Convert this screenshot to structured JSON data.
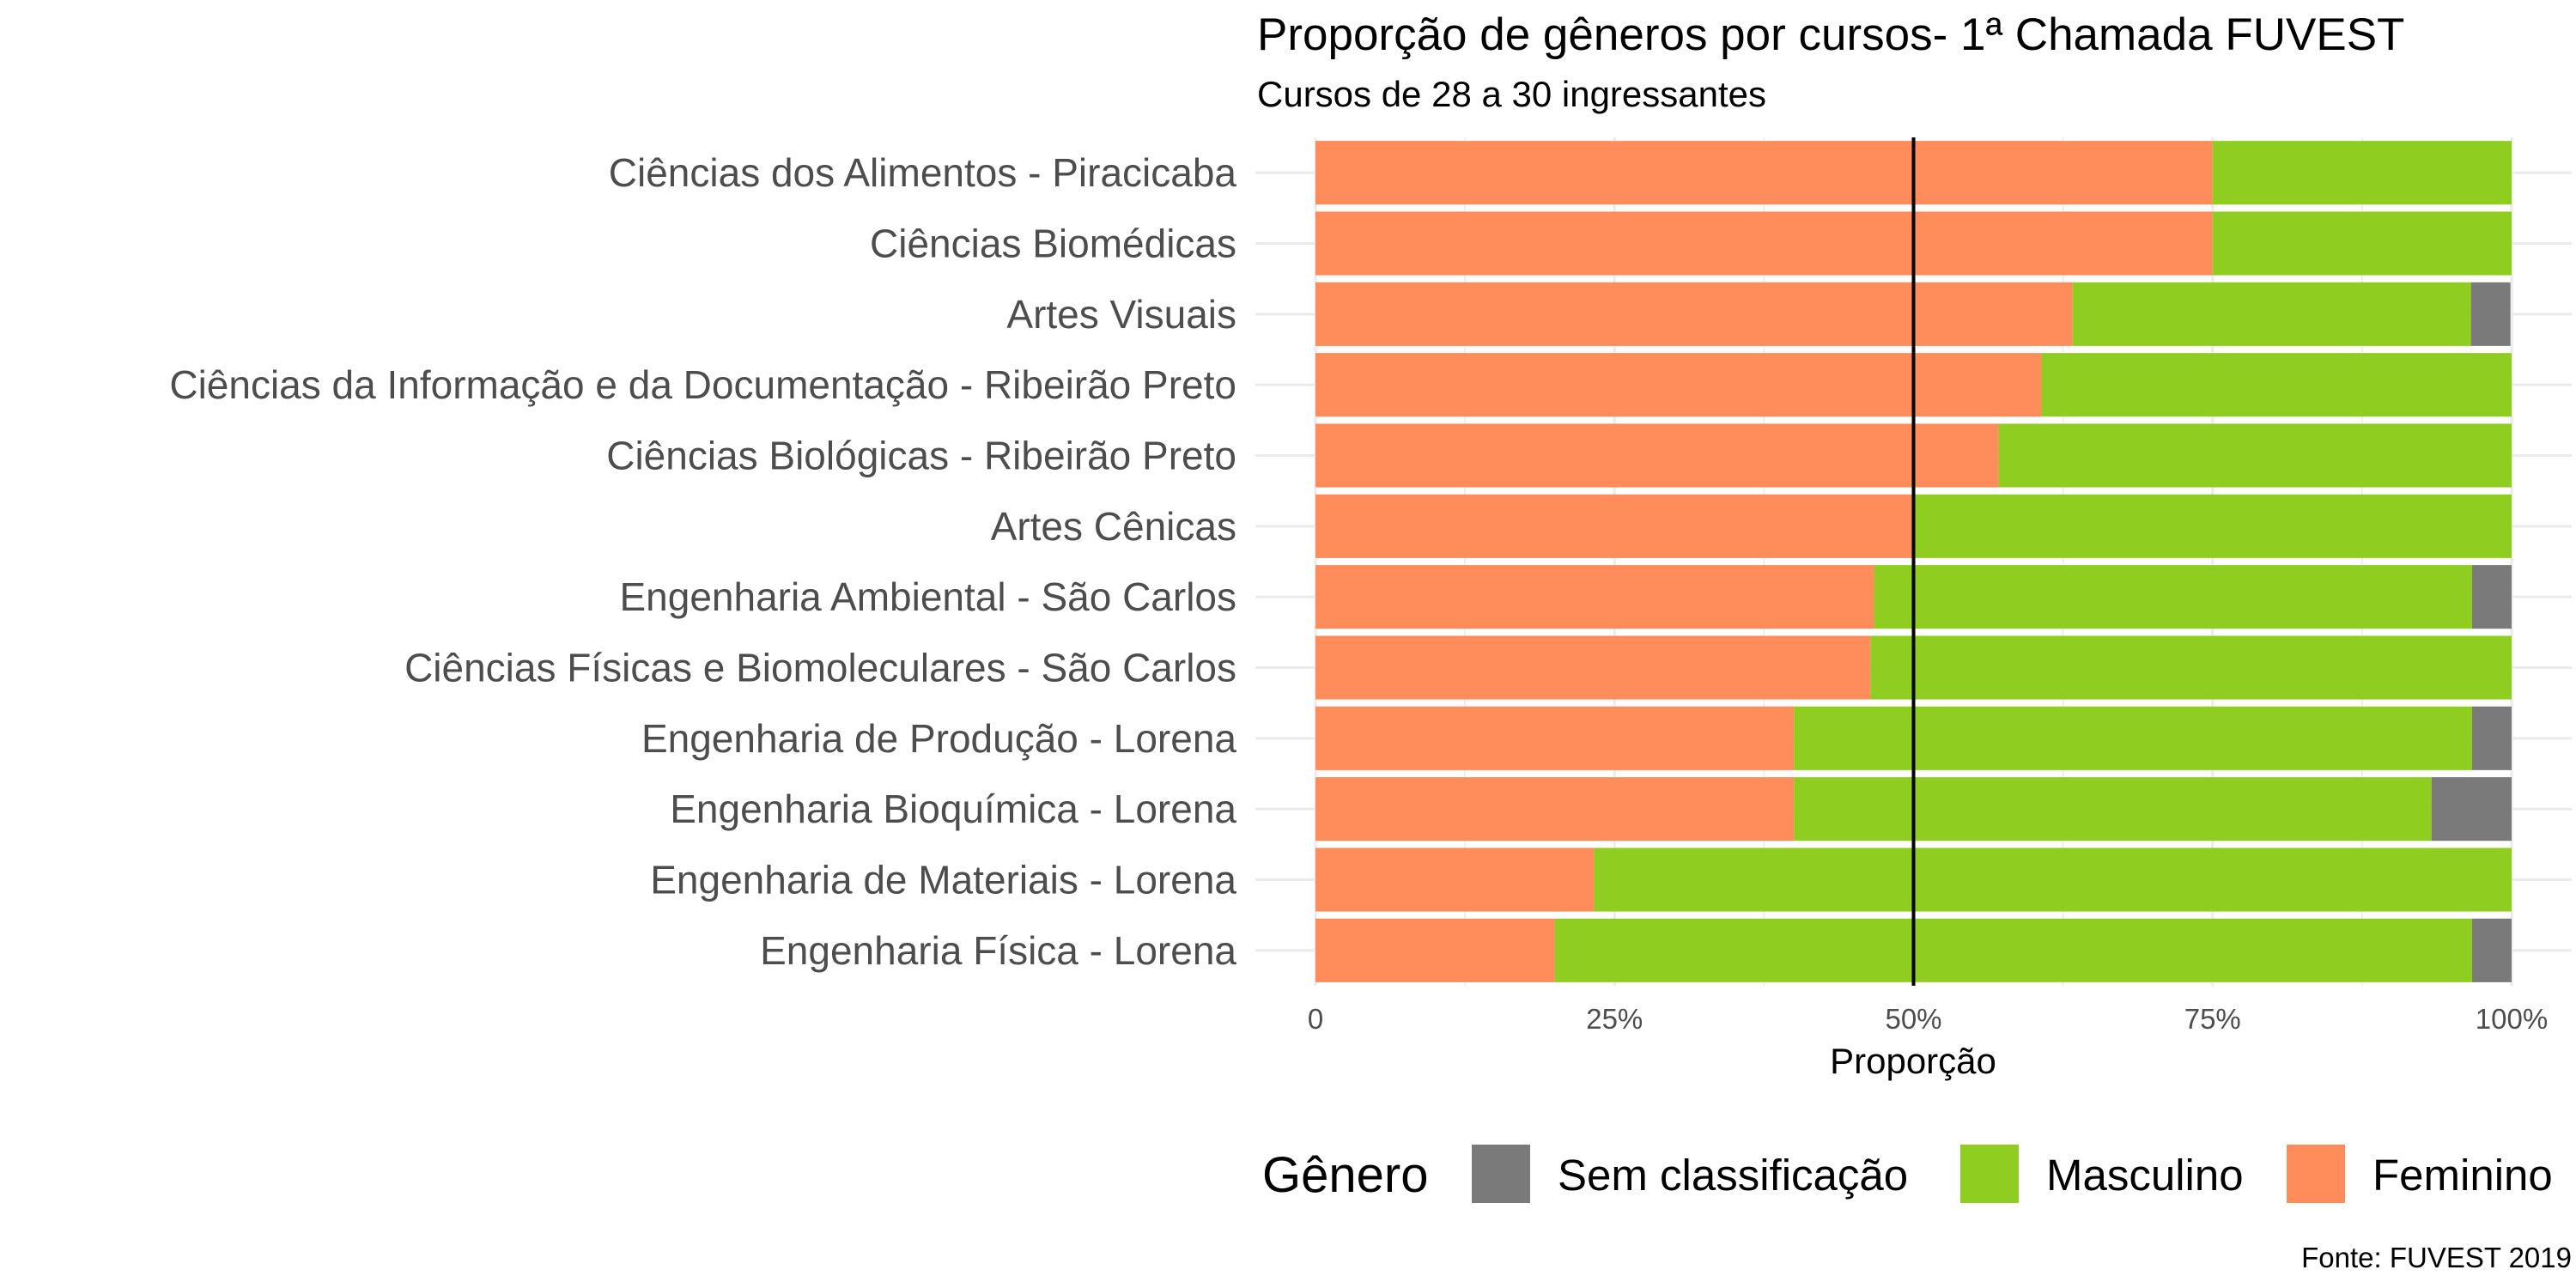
{
  "chart_data": {
    "type": "bar",
    "orientation": "horizontal",
    "stacked": true,
    "title": "Proporção de gêneros por cursos- 1ª Chamada FUVEST",
    "subtitle": "Cursos de 28 a 30 ingressantes",
    "xlabel": "Proporção",
    "ylabel": "",
    "xlim": [
      0,
      1
    ],
    "x_ticks": [
      {
        "value": 0,
        "label": "0"
      },
      {
        "value": 0.25,
        "label": "25%"
      },
      {
        "value": 0.5,
        "label": "50%"
      },
      {
        "value": 0.75,
        "label": "75%"
      },
      {
        "value": 1,
        "label": "100%"
      }
    ],
    "reference_line": 0.5,
    "grid": true,
    "categories": [
      "Ciências dos Alimentos - Piracicaba",
      "Ciências Biomédicas",
      "Artes Visuais",
      "Ciências da Informação e da Documentação - Ribeirão Preto",
      "Ciências Biológicas - Ribeirão Preto",
      "Artes Cênicas",
      "Engenharia Ambiental - São Carlos",
      "Ciências Físicas e Biomoleculares - São Carlos",
      "Engenharia de Produção - Lorena",
      "Engenharia Bioquímica - Lorena",
      "Engenharia de Materiais - Lorena",
      "Engenharia Física - Lorena"
    ],
    "series": [
      {
        "name": "Feminino",
        "color": "#ff8c5a",
        "values": [
          0.75,
          0.75,
          0.633,
          0.607,
          0.571,
          0.5,
          0.467,
          0.464,
          0.4,
          0.4,
          0.233,
          0.2
        ]
      },
      {
        "name": "Masculino",
        "color": "#8fce20",
        "values": [
          0.25,
          0.25,
          0.333,
          0.393,
          0.429,
          0.5,
          0.5,
          0.536,
          0.567,
          0.533,
          0.767,
          0.767
        ]
      },
      {
        "name": "Sem classificação",
        "color": "#7a7a7a",
        "values": [
          0,
          0,
          0.033,
          0,
          0,
          0,
          0.033,
          0,
          0.033,
          0.067,
          0,
          0.033
        ]
      }
    ],
    "legend": {
      "title": "Gênero",
      "position": "bottom",
      "order": [
        "Sem classificação",
        "Masculino",
        "Feminino"
      ]
    },
    "caption": "Fonte: FUVEST 2019"
  }
}
